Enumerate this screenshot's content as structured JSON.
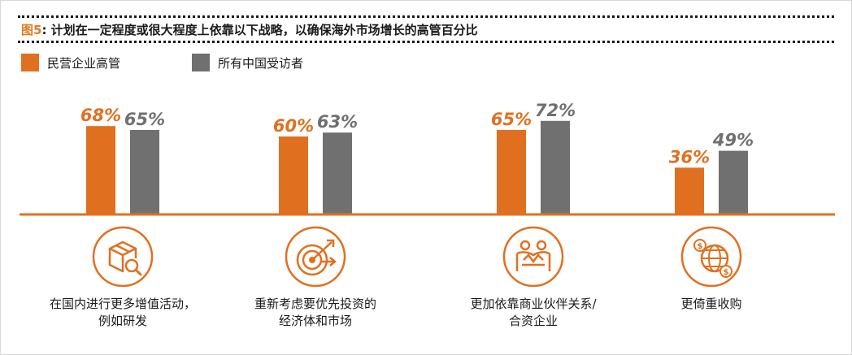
{
  "title": {
    "figure_label": "图5",
    "text": ": 计划在一定程度或很大程度上依靠以下战略，以确保海外市场增长的高管百分比"
  },
  "colors": {
    "orange": "#e07020",
    "gray": "#707070"
  },
  "chart_data": {
    "type": "bar",
    "title": "图5: 计划在一定程度或很大程度上依靠以下战略，以确保海外市场增长的高管百分比",
    "categories": [
      [
        "在国内进行更多增值活动，",
        "例如研发"
      ],
      [
        "重新考虑要优先投资的",
        "经济体和市场"
      ],
      [
        "更加依靠商业伙伴关系/",
        "合资企业"
      ],
      [
        "更倚重收购"
      ]
    ],
    "series": [
      {
        "name": "民营企业高管",
        "color": "#e07020",
        "values": [
          68,
          60,
          65,
          36
        ],
        "labels": [
          "68%",
          "60%",
          "65%",
          "36%"
        ]
      },
      {
        "name": "所有中国受访者",
        "color": "#707070",
        "values": [
          65,
          63,
          72,
          49
        ],
        "labels": [
          "65%",
          "63%",
          "72%",
          "49%"
        ]
      }
    ],
    "icons": [
      "box-search-icon",
      "target-arrow-icon",
      "partnership-icon",
      "globe-money-icon"
    ],
    "ylim": [
      0,
      100
    ],
    "legend": "top-left",
    "grid": false
  }
}
